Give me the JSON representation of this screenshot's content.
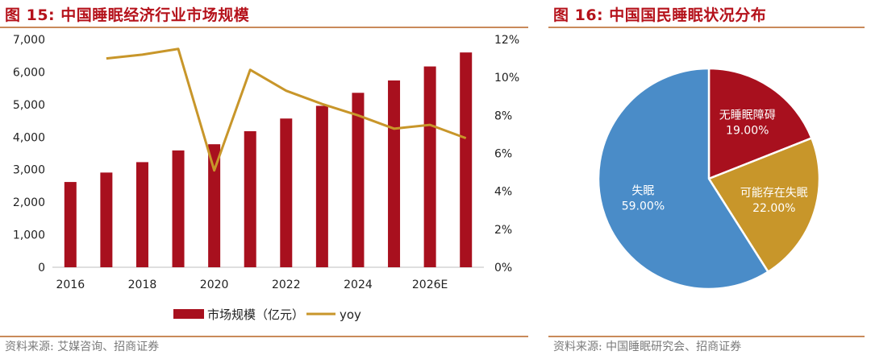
{
  "left": {
    "title": "图 15:  中国睡眠经济行业市场规模",
    "source": "资料来源:  艾媒咨询、招商证券",
    "chart_data": {
      "type": "bar",
      "categories": [
        "2016",
        "2017",
        "2018",
        "2019",
        "2020",
        "2021",
        "2022",
        "2023",
        "2024",
        "2025",
        "2026E",
        "2027E"
      ],
      "x_tick_labels": [
        "2016",
        "",
        "2018",
        "",
        "2020",
        "",
        "2022",
        "",
        "2024",
        "",
        "2026E",
        ""
      ],
      "series": [
        {
          "name": "市场规模（亿元）",
          "type": "bar",
          "axis": "left",
          "values": [
            2620,
            2910,
            3230,
            3590,
            3780,
            4180,
            4570,
            4960,
            5360,
            5740,
            6170,
            6600
          ]
        },
        {
          "name": "yoy",
          "type": "line",
          "axis": "right",
          "values": [
            null,
            11.0,
            11.2,
            11.5,
            5.1,
            10.4,
            9.3,
            8.6,
            8.0,
            7.3,
            7.5,
            6.8
          ]
        }
      ],
      "ylim_left": [
        0,
        7000
      ],
      "yticks_left": [
        "0",
        "1,000",
        "2,000",
        "3,000",
        "4,000",
        "5,000",
        "6,000",
        "7,000"
      ],
      "ylim_right": [
        0,
        12
      ],
      "yticks_right": [
        "0%",
        "2%",
        "4%",
        "6%",
        "8%",
        "10%",
        "12%"
      ],
      "colors": {
        "bar": "#a8101e",
        "line": "#c8962a"
      },
      "legend_position": "bottom"
    }
  },
  "right": {
    "title": "图 16:  中国国民睡眠状况分布",
    "source": "资料来源:  中国睡眠研究会、招商证券",
    "chart_data": {
      "type": "pie",
      "slices": [
        {
          "label": "无睡眠障碍",
          "pct_label": "19.00%",
          "value": 19.0,
          "color": "#a8101e"
        },
        {
          "label": "可能存在失眠",
          "pct_label": "22.00%",
          "value": 22.0,
          "color": "#c8962a"
        },
        {
          "label": "失眠",
          "pct_label": "59.00%",
          "value": 59.0,
          "color": "#4a8cc8"
        }
      ]
    }
  }
}
